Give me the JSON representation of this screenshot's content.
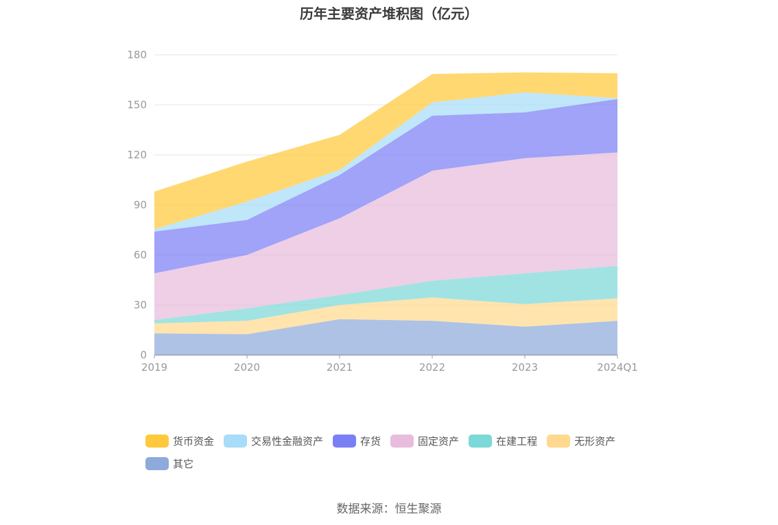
{
  "chart_data": {
    "type": "area",
    "stacked": true,
    "title": "历年主要资产堆积图（亿元）",
    "x": [
      "2019",
      "2020",
      "2021",
      "2022",
      "2023",
      "2024Q1"
    ],
    "yticks": [
      0,
      30,
      60,
      90,
      120,
      150,
      180
    ],
    "ylim": [
      0,
      180
    ],
    "grid": true,
    "legend_position": "bottom",
    "series": [
      {
        "name": "其它",
        "color": "#8eaadb",
        "values": [
          13,
          12.5,
          21.5,
          20.5,
          17,
          20.5
        ]
      },
      {
        "name": "无形资产",
        "color": "#ffd98f",
        "values": [
          6,
          8,
          8.5,
          14,
          13.5,
          13.5
        ]
      },
      {
        "name": "在建工程",
        "color": "#7dd8d8",
        "values": [
          2,
          7.5,
          6,
          10,
          18.5,
          19.5
        ]
      },
      {
        "name": "固定资产",
        "color": "#e8bcdc",
        "values": [
          28,
          32,
          46,
          66,
          69,
          68
        ]
      },
      {
        "name": "存货",
        "color": "#7b7ff5",
        "values": [
          25,
          21,
          26,
          33,
          27.5,
          32
        ]
      },
      {
        "name": "交易性金融资产",
        "color": "#a8dcf8",
        "values": [
          1.5,
          11,
          3,
          8,
          12,
          0.5
        ]
      },
      {
        "name": "货币资金",
        "color": "#ffc93c",
        "values": [
          22.5,
          24,
          21,
          17,
          12,
          15
        ]
      }
    ]
  },
  "legend": {
    "row1": [
      "货币资金",
      "交易性金融资产",
      "存货",
      "固定资产",
      "在建工程",
      "无形资产"
    ],
    "row2": [
      "其它"
    ]
  },
  "source_text": "数据来源：恒生聚源"
}
